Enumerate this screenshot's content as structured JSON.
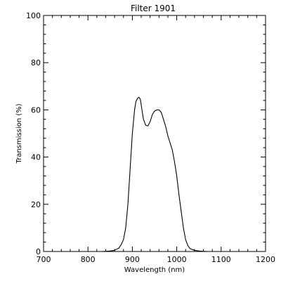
{
  "chart_data": {
    "type": "line",
    "title": "Filter  1901",
    "xlabel": "Wavelength (nm)",
    "ylabel": "Transmission (%)",
    "xlim": [
      700,
      1200
    ],
    "ylim": [
      0,
      100
    ],
    "xticks": [
      "700",
      "800",
      "900",
      "1000",
      "1100",
      "1200"
    ],
    "yticks": [
      "0",
      "20",
      "40",
      "60",
      "80",
      "100"
    ],
    "grid": false,
    "series": [
      {
        "color": "#000000",
        "x": [
          830,
          850,
          860,
          870,
          875,
          880,
          885,
          890,
          895,
          900,
          905,
          908,
          912,
          915,
          918,
          920,
          925,
          930,
          935,
          940,
          945,
          950,
          955,
          960,
          965,
          970,
          975,
          980,
          985,
          990,
          995,
          1000,
          1005,
          1010,
          1015,
          1020,
          1025,
          1030,
          1040,
          1050,
          1060,
          1070,
          1080,
          1100
        ],
        "y": [
          0,
          0.2,
          0.5,
          1.5,
          3,
          5,
          10,
          20,
          35,
          50,
          60,
          63.5,
          65,
          65.3,
          64.5,
          62,
          56,
          53.5,
          53.2,
          55,
          58,
          59.5,
          60,
          60,
          59,
          56,
          53,
          49,
          46,
          43,
          38,
          32,
          24,
          17,
          10,
          5,
          2.5,
          1.2,
          0.5,
          0.2,
          0.1,
          0,
          0,
          0
        ]
      }
    ]
  }
}
